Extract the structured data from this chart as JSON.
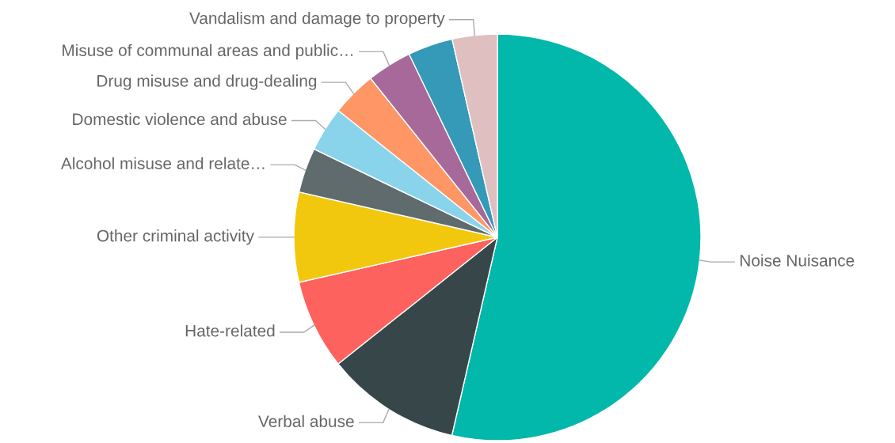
{
  "chart_data": {
    "type": "pie",
    "categories": [
      "Noise Nuisance",
      "Verbal abuse",
      "Hate-related",
      "Other criminal activity",
      "Alcohol misuse and relate…",
      "Domestic violence and abuse",
      "Drug misuse and drug-dealing",
      "Misuse of communal areas and public…",
      null,
      "Vandalism and damage to property"
    ],
    "values": [
      53.59,
      10.71,
      7.14,
      7.14,
      3.57,
      3.57,
      3.57,
      3.57,
      3.57,
      3.57
    ],
    "colors": [
      "#01b8aa",
      "#374649",
      "#fd625e",
      "#f2c80f",
      "#5f6b6d",
      "#8ad4eb",
      "#fe9666",
      "#a66999",
      "#3599b8",
      "#dfbfbf"
    ]
  }
}
